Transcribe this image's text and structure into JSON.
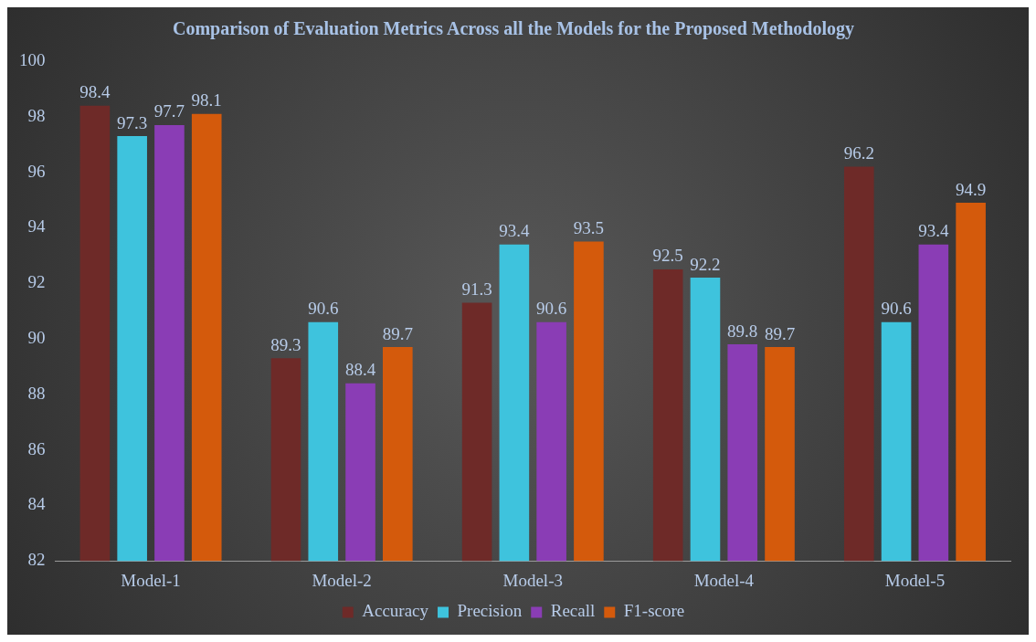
{
  "chart_data": {
    "type": "bar",
    "title": "Comparison of Evaluation Metrics Across all the Models for the Proposed Methodology",
    "categories": [
      "Model-1",
      "Model-2",
      "Model-3",
      "Model-4",
      "Model-5"
    ],
    "series": [
      {
        "name": "Accuracy",
        "color": "#6e2a28",
        "values": [
          98.4,
          89.3,
          91.3,
          92.5,
          96.2
        ]
      },
      {
        "name": "Precision",
        "color": "#3ec3dd",
        "values": [
          97.3,
          90.6,
          93.4,
          92.2,
          90.6
        ]
      },
      {
        "name": "Recall",
        "color": "#8a3db5",
        "values": [
          97.7,
          88.4,
          90.6,
          89.8,
          93.4
        ]
      },
      {
        "name": "F1-score",
        "color": "#d45a0c",
        "values": [
          98.1,
          89.7,
          93.5,
          89.7,
          94.9
        ]
      }
    ],
    "ylim": [
      82,
      100
    ],
    "yticks": [
      82,
      84,
      86,
      88,
      90,
      92,
      94,
      96,
      98,
      100
    ],
    "grid": false,
    "legend": "bottom",
    "data_labels": true
  }
}
